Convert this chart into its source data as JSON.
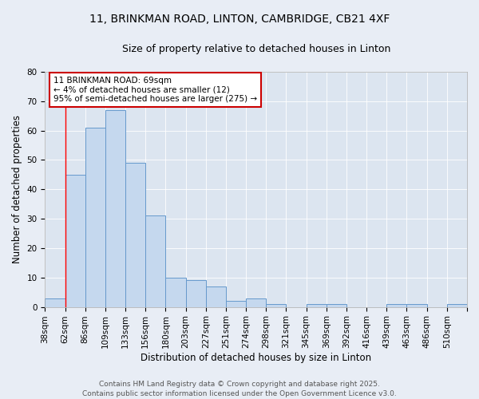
{
  "title_line1": "11, BRINKMAN ROAD, LINTON, CAMBRIDGE, CB21 4XF",
  "title_line2": "Size of property relative to detached houses in Linton",
  "xlabel": "Distribution of detached houses by size in Linton",
  "ylabel": "Number of detached properties",
  "bar_values": [
    3,
    45,
    61,
    67,
    49,
    31,
    10,
    9,
    7,
    2,
    3,
    1,
    0,
    1,
    1,
    0,
    0,
    1,
    1,
    0,
    1
  ],
  "x_tick_labels": [
    "38sqm",
    "62sqm",
    "86sqm",
    "109sqm",
    "133sqm",
    "156sqm",
    "180sqm",
    "203sqm",
    "227sqm",
    "251sqm",
    "274sqm",
    "298sqm",
    "321sqm",
    "345sqm",
    "369sqm",
    "392sqm",
    "416sqm",
    "439sqm",
    "463sqm",
    "486sqm",
    "510sqm"
  ],
  "bar_color": "#c5d8ee",
  "bar_edgecolor": "#6699cc",
  "red_line_x": 1.0,
  "ylim": [
    0,
    80
  ],
  "yticks": [
    0,
    10,
    20,
    30,
    40,
    50,
    60,
    70,
    80
  ],
  "annotation_text": "11 BRINKMAN ROAD: 69sqm\n← 4% of detached houses are smaller (12)\n95% of semi-detached houses are larger (275) →",
  "annotation_box_facecolor": "#ffffff",
  "annotation_box_edgecolor": "#cc0000",
  "background_color": "#e8edf5",
  "plot_bg_color": "#dce5f0",
  "grid_color": "#ffffff",
  "footer_text": "Contains HM Land Registry data © Crown copyright and database right 2025.\nContains public sector information licensed under the Open Government Licence v3.0.",
  "title_fontsize": 10,
  "subtitle_fontsize": 9,
  "axis_label_fontsize": 8.5,
  "tick_fontsize": 7.5,
  "annotation_fontsize": 7.5,
  "footer_fontsize": 6.5
}
